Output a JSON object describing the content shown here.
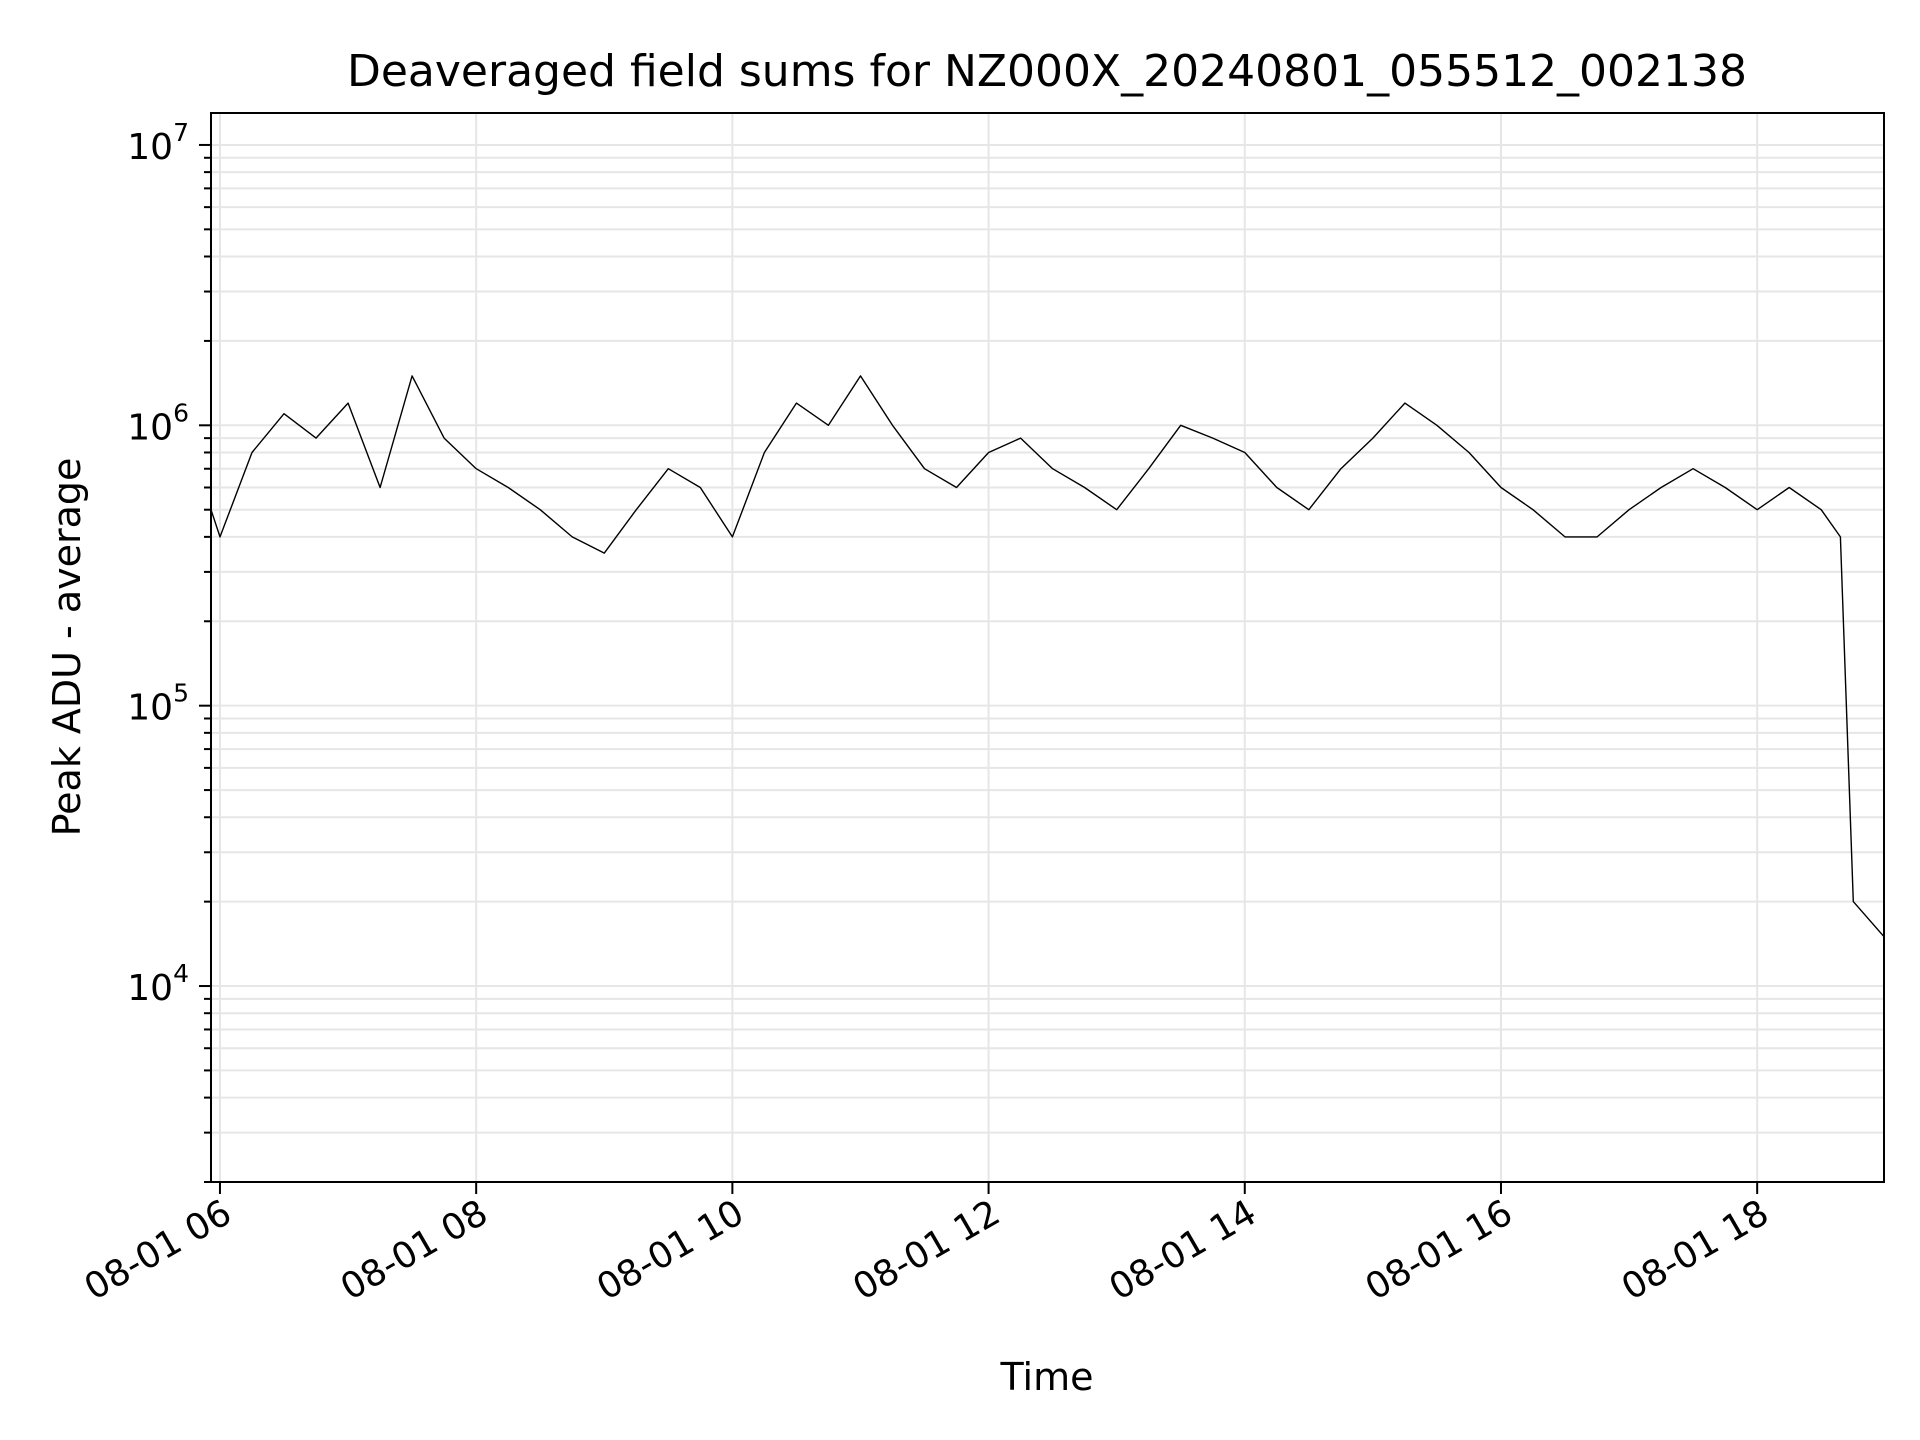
{
  "chart_data": {
    "type": "line",
    "title": "Deaveraged field sums for NZ000X_20240801_055512_002138",
    "xlabel": "Time",
    "ylabel": "Peak ADU - average",
    "yscale": "log",
    "x_ticks": [
      "08-01 06",
      "08-01 08",
      "08-01 10",
      "08-01 12",
      "08-01 14",
      "08-01 16",
      "08-01 18"
    ],
    "x_tick_hours": [
      6,
      8,
      10,
      12,
      14,
      16,
      18
    ],
    "y_ticks": [
      {
        "base": "10",
        "exp": "4",
        "value": 10000
      },
      {
        "base": "10",
        "exp": "5",
        "value": 100000
      },
      {
        "base": "10",
        "exp": "6",
        "value": 1000000
      },
      {
        "base": "10",
        "exp": "7",
        "value": 10000000
      }
    ],
    "xlim_hours": [
      5.93,
      18.99
    ],
    "ylim": [
      2000,
      13000000
    ],
    "grid": true,
    "line_color": "#000000",
    "grid_color": "#e6e6e6",
    "series": [
      {
        "x_hours": [
          5.93,
          6.0,
          6.25,
          6.5,
          6.75,
          7.0,
          7.25,
          7.5,
          7.75,
          8.0,
          8.25,
          8.5,
          8.75,
          9.0,
          9.25,
          9.5,
          9.75,
          10.0,
          10.25,
          10.5,
          10.75,
          11.0,
          11.25,
          11.5,
          11.75,
          12.0,
          12.25,
          12.5,
          12.75,
          13.0,
          13.25,
          13.5,
          13.75,
          14.0,
          14.25,
          14.5,
          14.75,
          15.0,
          15.25,
          15.5,
          15.75,
          16.0,
          16.25,
          16.5,
          16.75,
          17.0,
          17.25,
          17.5,
          17.75,
          18.0,
          18.25,
          18.5,
          18.65,
          18.75,
          18.99
        ],
        "y": [
          500000,
          400000,
          800000,
          1100000,
          900000,
          1200000,
          600000,
          1500000,
          900000,
          700000,
          600000,
          500000,
          400000,
          350000,
          500000,
          700000,
          600000,
          400000,
          800000,
          1200000,
          1000000,
          1500000,
          1000000,
          700000,
          600000,
          800000,
          900000,
          700000,
          600000,
          500000,
          700000,
          1000000,
          900000,
          800000,
          600000,
          500000,
          700000,
          900000,
          1200000,
          1000000,
          800000,
          600000,
          500000,
          400000,
          400000,
          500000,
          600000,
          700000,
          600000,
          500000,
          600000,
          500000,
          400000,
          20000,
          15000
        ]
      }
    ],
    "annotations": []
  }
}
